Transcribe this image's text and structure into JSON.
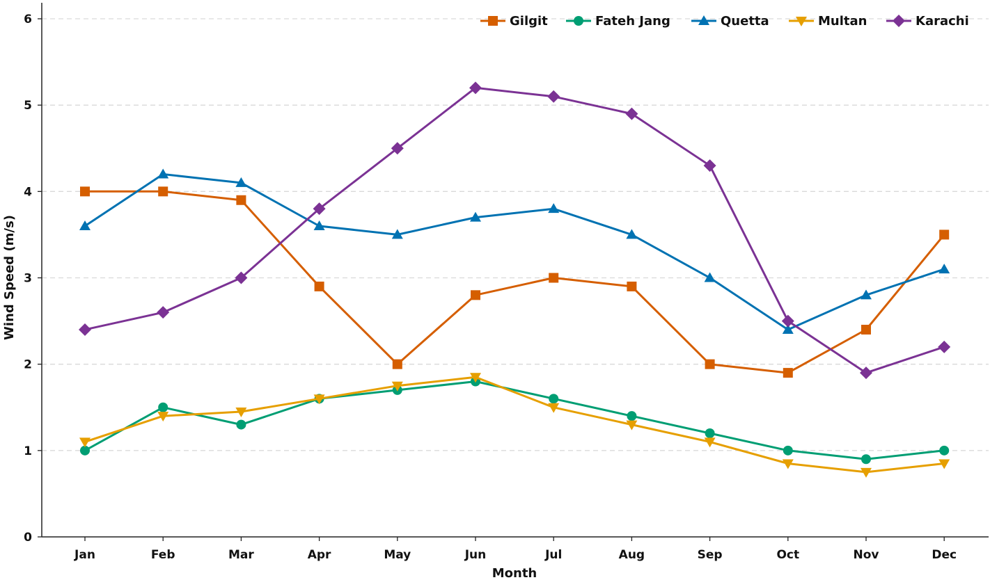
{
  "chart_data": {
    "type": "line",
    "xlabel": "Month",
    "ylabel": "Wind Speed (m/s)",
    "ylim": [
      0,
      6
    ],
    "yticks": [
      0,
      1,
      2,
      3,
      4,
      5,
      6
    ],
    "grid": "y-dashed",
    "legend_position": "top-right",
    "categories": [
      "Jan",
      "Feb",
      "Mar",
      "Apr",
      "May",
      "Jun",
      "Jul",
      "Aug",
      "Sep",
      "Oct",
      "Nov",
      "Dec"
    ],
    "series": [
      {
        "name": "Gilgit",
        "color": "#D55E00",
        "marker": "square",
        "values": [
          4.0,
          4.0,
          3.9,
          2.9,
          2.0,
          2.8,
          3.0,
          2.9,
          2.0,
          1.9,
          2.4,
          3.5
        ]
      },
      {
        "name": "Fateh Jang",
        "color": "#009E73",
        "marker": "circle",
        "values": [
          1.0,
          1.5,
          1.3,
          1.6,
          1.7,
          1.8,
          1.6,
          1.4,
          1.2,
          1.0,
          0.9,
          1.0
        ]
      },
      {
        "name": "Quetta",
        "color": "#0072B2",
        "marker": "triangle-up",
        "values": [
          3.6,
          4.2,
          4.1,
          3.6,
          3.5,
          3.7,
          3.8,
          3.5,
          3.0,
          2.4,
          2.8,
          3.1
        ]
      },
      {
        "name": "Multan",
        "color": "#E69F00",
        "marker": "triangle-down",
        "values": [
          1.1,
          1.4,
          1.45,
          1.6,
          1.75,
          1.85,
          1.5,
          1.3,
          1.1,
          0.85,
          0.75,
          0.85
        ]
      },
      {
        "name": "Karachi",
        "color": "#7B3294",
        "marker": "diamond",
        "values": [
          2.4,
          2.6,
          3.0,
          3.8,
          4.5,
          5.2,
          5.1,
          4.9,
          4.3,
          2.5,
          1.9,
          2.2
        ]
      }
    ]
  }
}
